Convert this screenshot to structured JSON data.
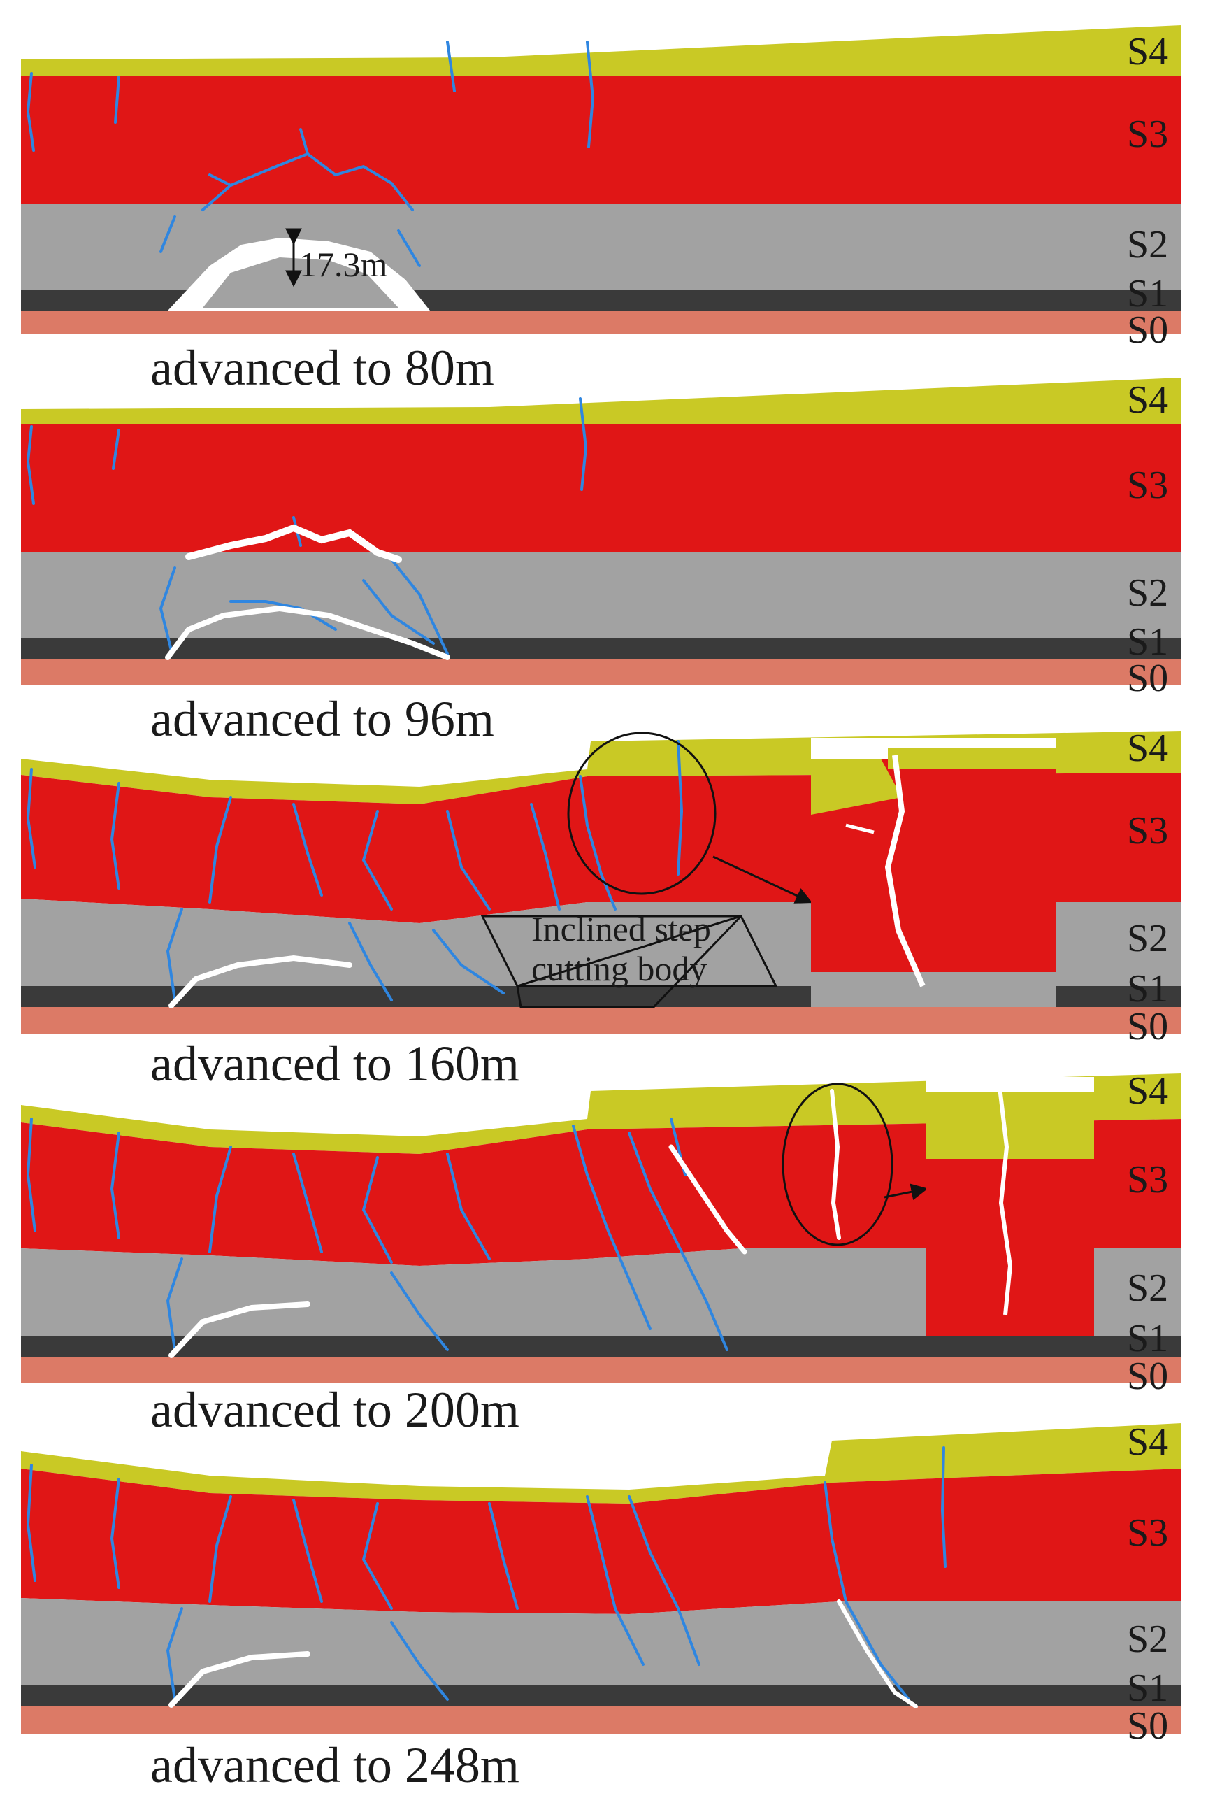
{
  "colors": {
    "S4": "#c9c925",
    "S3": "#e01616",
    "S2": "#a2a2a2",
    "S1": "#3a3a3a",
    "S0": "#dc7a66",
    "fracture": "#2f86e0",
    "opening": "#ffffff"
  },
  "layer_labels": {
    "S4": "S4",
    "S3": "S3",
    "S2": "S2",
    "S1": "S1",
    "S0": "S0"
  },
  "panels": [
    {
      "id": "p1",
      "caption": "advanced to 80m",
      "annotation": "17.3m"
    },
    {
      "id": "p2",
      "caption": "advanced to 96m"
    },
    {
      "id": "p3",
      "caption": "advanced to 160m",
      "annotation_line1": "Inclined step",
      "annotation_line2": "cutting body"
    },
    {
      "id": "p4",
      "caption": "advanced to 200m"
    },
    {
      "id": "p5",
      "caption": "advanced to 248m"
    }
  ]
}
